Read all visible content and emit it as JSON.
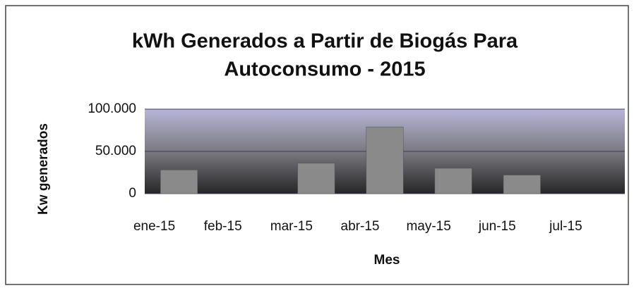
{
  "chart_data": {
    "type": "bar",
    "title": [
      "kWh Generados a Partir de Biogás Para",
      "Autoconsumo - 2015"
    ],
    "x_label": "Mes",
    "y_label": "Kw generados",
    "categories": [
      "ene-15",
      "feb-15",
      "mar-15",
      "abr-15",
      "may-15",
      "jun-15",
      "jul-15"
    ],
    "values": [
      28000,
      0,
      36000,
      79000,
      30000,
      22000,
      0
    ],
    "color": "#8a8a8a",
    "ylim": [
      0,
      100000
    ],
    "yticks": [
      0,
      {
        "value": 50000,
        "label": "50.000"
      },
      {
        "value": 100000,
        "label": "100.000"
      }
    ],
    "grid": true
  }
}
